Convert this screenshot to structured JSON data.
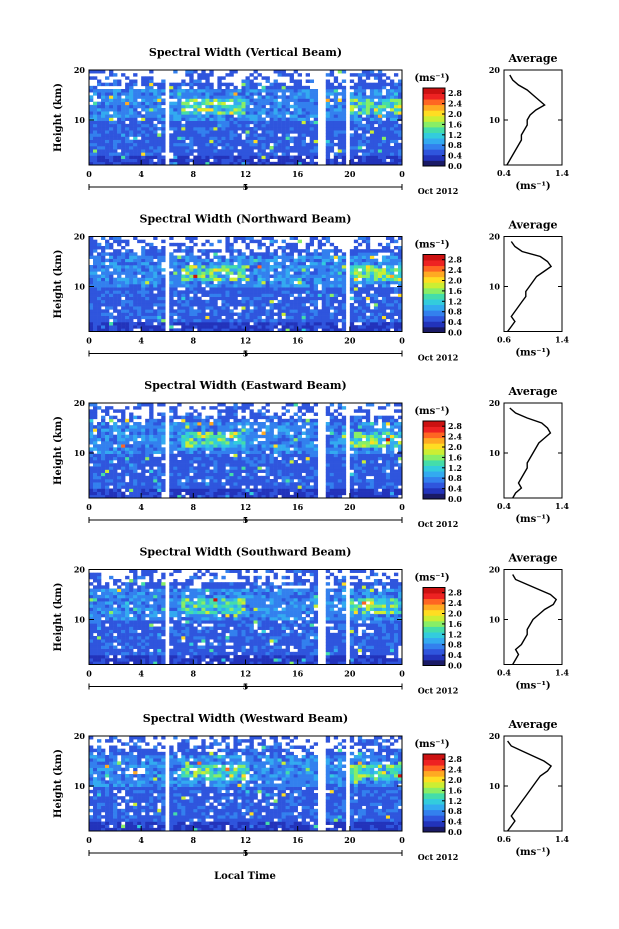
{
  "figure": {
    "xlabel": "Local Time"
  },
  "colors": [
    "#1a1a66",
    "#2233bb",
    "#2f55dd",
    "#3380ee",
    "#33aaf0",
    "#33ccdd",
    "#44ddaa",
    "#88ee66",
    "#ccee33",
    "#ffdd22",
    "#ffaa22",
    "#ff6622",
    "#ee2222",
    "#cc1111"
  ],
  "chart_data": [
    {
      "type": "heatmap",
      "title": "Spectral Width (Vertical Beam)",
      "ylabel": "Height (km)",
      "xlabel": "Local Time",
      "x_range": [
        0,
        24
      ],
      "y_range": [
        1,
        20
      ],
      "xticks": [
        "0",
        "4",
        "8",
        "12",
        "16",
        "20",
        "0"
      ],
      "yticks": [
        "10",
        "20"
      ],
      "date_tick": "5",
      "date_label": "Oct 2012",
      "colorbar": {
        "unit": "(ms⁻¹)",
        "ticks": [
          "0.0",
          "0.4",
          "0.8",
          "1.2",
          "1.6",
          "2.0",
          "2.4",
          "2.8"
        ],
        "range": [
          0,
          3.0
        ]
      },
      "gaps": [
        [
          5.8,
          6.3
        ],
        [
          17.6,
          18.1
        ],
        [
          19.6,
          20.0
        ]
      ],
      "profile": {
        "title": "Average",
        "xlabel": "(ms⁻¹)",
        "xticks": [
          "0.4",
          "1.4"
        ],
        "xlim": [
          0.4,
          1.4
        ],
        "yticks": [
          "10",
          "20"
        ],
        "heights": [
          1,
          2,
          3,
          4,
          5,
          6,
          7,
          8,
          9,
          10,
          11,
          12,
          13,
          14,
          15,
          16,
          17,
          18,
          19
        ],
        "values": [
          0.45,
          0.5,
          0.55,
          0.6,
          0.65,
          0.7,
          0.7,
          0.75,
          0.8,
          0.8,
          0.85,
          0.95,
          1.1,
          1.0,
          0.9,
          0.8,
          0.65,
          0.55,
          0.5
        ]
      }
    },
    {
      "type": "heatmap",
      "title": "Spectral Width (Northward Beam)",
      "ylabel": "Height (km)",
      "xlabel": "Local Time",
      "x_range": [
        0,
        24
      ],
      "y_range": [
        1,
        20
      ],
      "xticks": [
        "0",
        "4",
        "8",
        "12",
        "16",
        "20",
        "0"
      ],
      "yticks": [
        "10",
        "20"
      ],
      "date_tick": "5",
      "date_label": "Oct 2012",
      "colorbar": {
        "unit": "(ms⁻¹)",
        "ticks": [
          "0.0",
          "0.4",
          "0.8",
          "1.2",
          "1.6",
          "2.0",
          "2.4",
          "2.8"
        ],
        "range": [
          0,
          3.0
        ]
      },
      "gaps": [
        [
          5.8,
          6.3
        ],
        [
          19.6,
          20.0
        ]
      ],
      "profile": {
        "title": "Average",
        "xlabel": "(ms⁻¹)",
        "xticks": [
          "0.6",
          "1.4"
        ],
        "xlim": [
          0.6,
          1.4
        ],
        "yticks": [
          "10",
          "20"
        ],
        "heights": [
          1,
          2,
          3,
          4,
          5,
          6,
          7,
          8,
          9,
          10,
          11,
          12,
          13,
          14,
          15,
          16,
          17,
          18,
          19
        ],
        "values": [
          0.65,
          0.7,
          0.75,
          0.7,
          0.75,
          0.8,
          0.85,
          0.9,
          0.9,
          0.95,
          1.0,
          1.05,
          1.15,
          1.25,
          1.2,
          1.1,
          0.85,
          0.75,
          0.7
        ]
      }
    },
    {
      "type": "heatmap",
      "title": "Spectral Width (Eastward Beam)",
      "ylabel": "Height (km)",
      "xlabel": "Local Time",
      "x_range": [
        0,
        24
      ],
      "y_range": [
        1,
        20
      ],
      "xticks": [
        "0",
        "4",
        "8",
        "12",
        "16",
        "20",
        "0"
      ],
      "yticks": [
        "10",
        "20"
      ],
      "date_tick": "5",
      "date_label": "Oct 2012",
      "colorbar": {
        "unit": "(ms⁻¹)",
        "ticks": [
          "0.0",
          "0.4",
          "0.8",
          "1.2",
          "1.6",
          "2.0",
          "2.4",
          "2.8"
        ],
        "range": [
          0,
          3.0
        ]
      },
      "gaps": [
        [
          5.8,
          6.3
        ],
        [
          17.6,
          18.1
        ],
        [
          19.6,
          20.0
        ]
      ],
      "profile": {
        "title": "Average",
        "xlabel": "(ms⁻¹)",
        "xticks": [
          "0.4",
          "1.4"
        ],
        "xlim": [
          0.4,
          1.4
        ],
        "yticks": [
          "10",
          "20"
        ],
        "heights": [
          1,
          2,
          3,
          4,
          5,
          6,
          7,
          8,
          9,
          10,
          11,
          12,
          13,
          14,
          15,
          16,
          17,
          18,
          19
        ],
        "values": [
          0.55,
          0.6,
          0.7,
          0.65,
          0.7,
          0.75,
          0.8,
          0.8,
          0.85,
          0.9,
          0.95,
          1.0,
          1.1,
          1.2,
          1.15,
          1.05,
          0.8,
          0.6,
          0.5
        ]
      }
    },
    {
      "type": "heatmap",
      "title": "Spectral Width (Southward Beam)",
      "ylabel": "Height (km)",
      "xlabel": "Local Time",
      "x_range": [
        0,
        24
      ],
      "y_range": [
        1,
        20
      ],
      "xticks": [
        "0",
        "4",
        "8",
        "12",
        "16",
        "20",
        "0"
      ],
      "yticks": [
        "10",
        "20"
      ],
      "date_tick": "5",
      "date_label": "Oct 2012",
      "colorbar": {
        "unit": "(ms⁻¹)",
        "ticks": [
          "0.0",
          "0.4",
          "0.8",
          "1.2",
          "1.6",
          "2.0",
          "2.4",
          "2.8"
        ],
        "range": [
          0,
          3.0
        ]
      },
      "gaps": [
        [
          5.8,
          6.3
        ],
        [
          17.6,
          18.1
        ],
        [
          19.6,
          20.0
        ]
      ],
      "profile": {
        "title": "Average",
        "xlabel": "(ms⁻¹)",
        "xticks": [
          "0.4",
          "1.4"
        ],
        "xlim": [
          0.4,
          1.4
        ],
        "yticks": [
          "10",
          "20"
        ],
        "heights": [
          1,
          2,
          3,
          4,
          5,
          6,
          7,
          8,
          9,
          10,
          11,
          12,
          13,
          14,
          15,
          16,
          17,
          18,
          19
        ],
        "values": [
          0.55,
          0.6,
          0.65,
          0.6,
          0.7,
          0.75,
          0.8,
          0.8,
          0.85,
          0.9,
          1.0,
          1.1,
          1.25,
          1.3,
          1.2,
          1.0,
          0.8,
          0.6,
          0.55
        ]
      }
    },
    {
      "type": "heatmap",
      "title": "Spectral Width (Westward Beam)",
      "ylabel": "Height (km)",
      "xlabel": "Local Time",
      "x_range": [
        0,
        24
      ],
      "y_range": [
        1,
        20
      ],
      "xticks": [
        "0",
        "4",
        "8",
        "12",
        "16",
        "20",
        "0"
      ],
      "yticks": [
        "10",
        "20"
      ],
      "date_tick": "5",
      "date_label": "Oct 2012",
      "colorbar": {
        "unit": "(ms⁻¹)",
        "ticks": [
          "0.0",
          "0.4",
          "0.8",
          "1.2",
          "1.6",
          "2.0",
          "2.4",
          "2.8"
        ],
        "range": [
          0,
          3.0
        ]
      },
      "gaps": [
        [
          5.8,
          6.3
        ],
        [
          17.6,
          18.1
        ],
        [
          19.6,
          20.0
        ]
      ],
      "profile": {
        "title": "Average",
        "xlabel": "(ms⁻¹)",
        "xticks": [
          "0.6",
          "1.4"
        ],
        "xlim": [
          0.6,
          1.4
        ],
        "yticks": [
          "10",
          "20"
        ],
        "heights": [
          1,
          2,
          3,
          4,
          5,
          6,
          7,
          8,
          9,
          10,
          11,
          12,
          13,
          14,
          15,
          16,
          17,
          18,
          19
        ],
        "values": [
          0.65,
          0.7,
          0.75,
          0.7,
          0.75,
          0.8,
          0.85,
          0.9,
          0.95,
          1.0,
          1.05,
          1.1,
          1.2,
          1.25,
          1.15,
          1.0,
          0.85,
          0.7,
          0.65
        ]
      }
    }
  ]
}
